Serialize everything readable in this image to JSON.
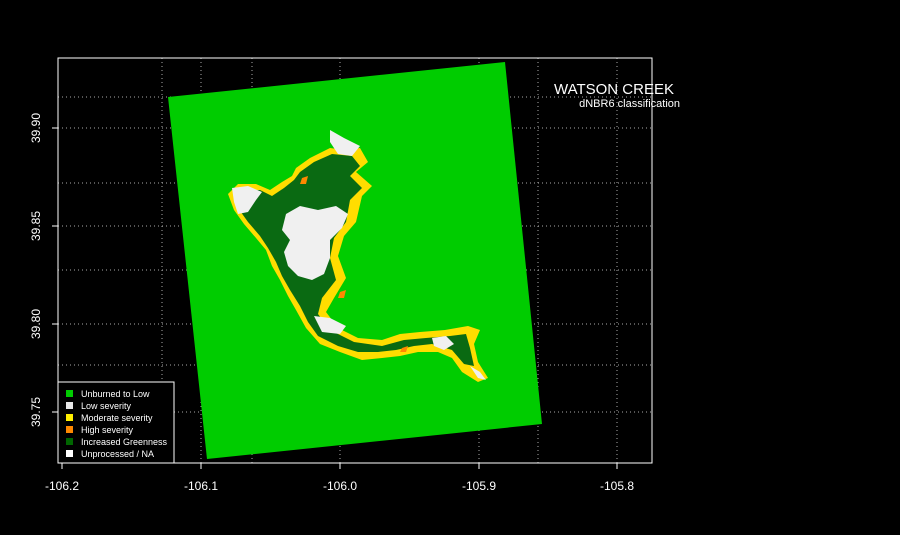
{
  "title": "WATSON CREEK",
  "subtitle": "dNBR6 classification",
  "x_ticks": [
    "-106.2",
    "-106.1",
    "-106.0",
    "-105.9",
    "-105.8"
  ],
  "y_ticks": [
    "39.75",
    "39.80",
    "39.85",
    "39.90"
  ],
  "legend": [
    {
      "label": "Unburned to Low",
      "color": "#00cc00"
    },
    {
      "label": "Low severity",
      "color": "#e8e8e8"
    },
    {
      "label": "Moderate severity",
      "color": "#ffee00"
    },
    {
      "label": "High severity",
      "color": "#ff8800"
    },
    {
      "label": "Increased Greenness",
      "color": "#006600"
    },
    {
      "label": "Unprocessed / NA",
      "color": "#ffffff"
    }
  ],
  "colors": {
    "background": "#000000",
    "frame": "#ffffff",
    "grid": "#aaaaaa",
    "unburned": "#00cc00"
  }
}
